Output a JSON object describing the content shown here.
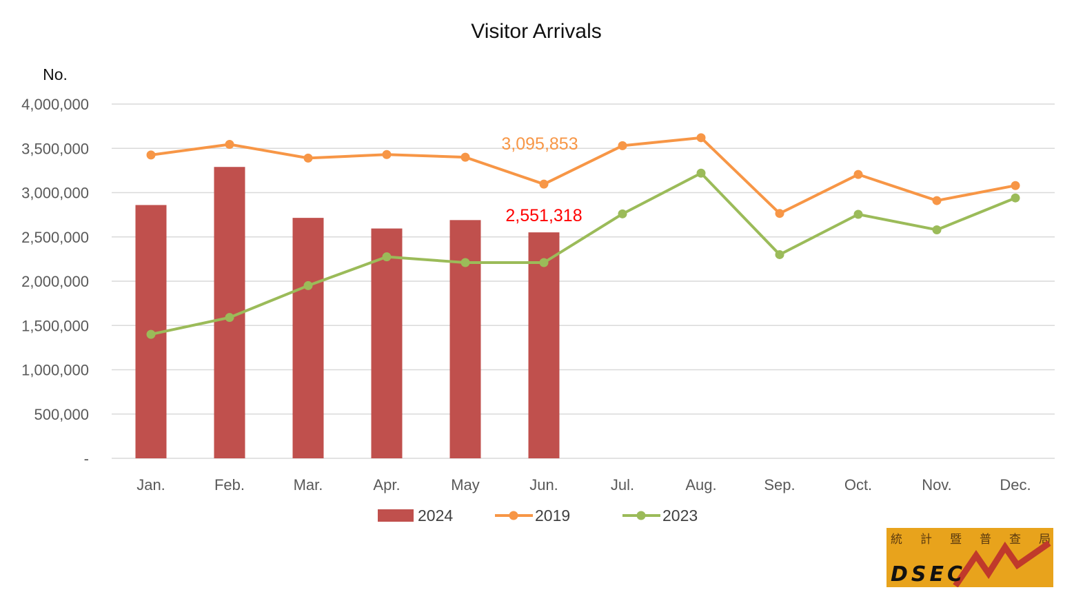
{
  "chart_data": {
    "type": "bar",
    "title": "Visitor Arrivals",
    "ylabel": "No.",
    "xlabel": "",
    "ylim": [
      0,
      4000000
    ],
    "y_ticks": [
      "-",
      "500,000",
      "1,000,000",
      "1,500,000",
      "2,000,000",
      "2,500,000",
      "3,000,000",
      "3,500,000",
      "4,000,000"
    ],
    "y_tick_values": [
      0,
      500000,
      1000000,
      1500000,
      2000000,
      2500000,
      3000000,
      3500000,
      4000000
    ],
    "categories": [
      "Jan.",
      "Feb.",
      "Mar.",
      "Apr.",
      "May",
      "Jun.",
      "Jul.",
      "Aug.",
      "Sep.",
      "Oct.",
      "Nov.",
      "Dec."
    ],
    "grid": true,
    "legend_position": "bottom",
    "series": [
      {
        "name": "2024",
        "kind": "bar",
        "color": "#C0504D",
        "values": [
          2860000,
          3290000,
          2715000,
          2595000,
          2690000,
          2551318,
          null,
          null,
          null,
          null,
          null,
          null
        ]
      },
      {
        "name": "2019",
        "kind": "line",
        "color": "#F79646",
        "values": [
          3425000,
          3545000,
          3390000,
          3430000,
          3400000,
          3095853,
          3530000,
          3620000,
          2765000,
          3205000,
          2910000,
          3080000
        ]
      },
      {
        "name": "2023",
        "kind": "line",
        "color": "#9BBB59",
        "values": [
          1400000,
          1590000,
          1950000,
          2275000,
          2210000,
          2210000,
          2760000,
          3220000,
          2300000,
          2755000,
          2580000,
          2940000
        ]
      }
    ],
    "annotations": [
      {
        "text": "3,095,853",
        "series": "2019",
        "category": "Jun.",
        "color": "#F79646"
      },
      {
        "text": "2,551,318",
        "series": "2024",
        "category": "Jun.",
        "color": "#FF0000"
      }
    ]
  },
  "logo": {
    "chinese_chars": [
      "統",
      "計",
      "暨",
      "普",
      "查",
      "局"
    ],
    "text": "DSEC",
    "background": "#E8A31C",
    "zigzag_color": "#C0392B"
  }
}
